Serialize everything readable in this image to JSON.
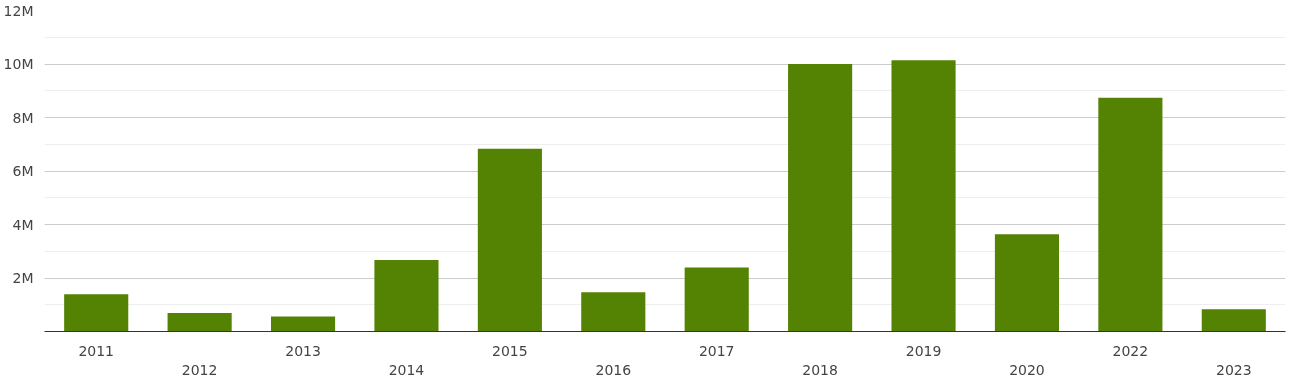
{
  "chart_data": {
    "type": "bar",
    "categories": [
      "2011",
      "2012",
      "2013",
      "2014",
      "2015",
      "2016",
      "2017",
      "2018",
      "2019",
      "2020",
      "2022",
      "2023"
    ],
    "values": [
      1.39,
      0.69,
      0.56,
      2.67,
      6.83,
      1.47,
      2.39,
      10.0,
      10.14,
      3.64,
      8.74,
      0.83
    ],
    "color": "#548203",
    "ylim": [
      0,
      12
    ],
    "yticks": [
      {
        "value": 2,
        "label": "2M"
      },
      {
        "value": 4,
        "label": "4M"
      },
      {
        "value": 6,
        "label": "6M"
      },
      {
        "value": 8,
        "label": "8M"
      },
      {
        "value": 10,
        "label": "10M"
      },
      {
        "value": 12,
        "label": "12M"
      }
    ],
    "grid": "y"
  }
}
